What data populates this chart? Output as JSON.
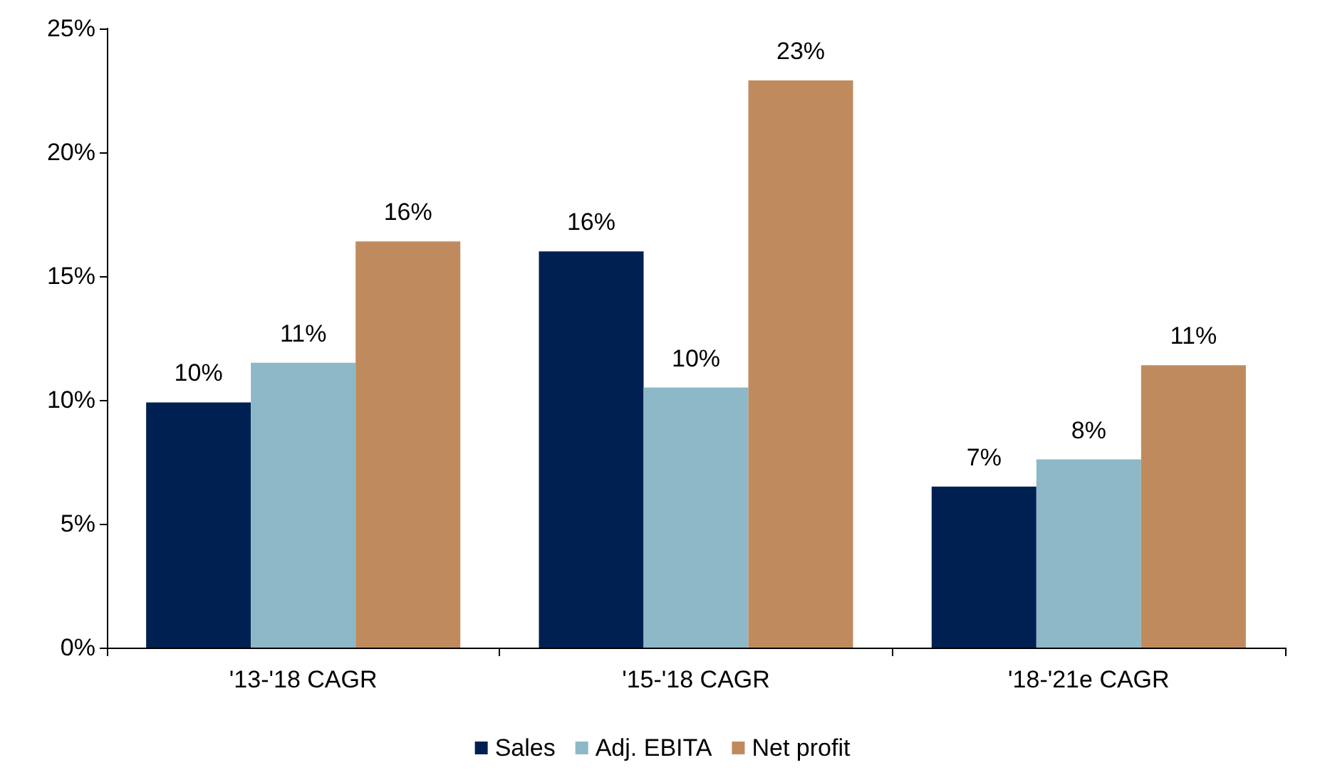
{
  "chart_data": {
    "type": "bar",
    "categories": [
      "'13-'18 CAGR",
      "'15-'18 CAGR",
      "'18-'21e CAGR"
    ],
    "series": [
      {
        "name": "Sales",
        "color": "#002052",
        "values": [
          9.9,
          16.0,
          6.5
        ],
        "value_labels": [
          "10%",
          "16%",
          "7%"
        ]
      },
      {
        "name": "Adj. EBITA",
        "color": "#8db8c7",
        "values": [
          11.5,
          10.5,
          7.6
        ],
        "value_labels": [
          "11%",
          "10%",
          "8%"
        ]
      },
      {
        "name": "Net profit",
        "color": "#bf8b5e",
        "values": [
          16.4,
          22.9,
          11.4
        ],
        "value_labels": [
          "16%",
          "23%",
          "11%"
        ]
      }
    ],
    "ylim": [
      0,
      25
    ],
    "yticks": [
      {
        "value": 0,
        "label": "0%"
      },
      {
        "value": 5,
        "label": "5%"
      },
      {
        "value": 10,
        "label": "10%"
      },
      {
        "value": 15,
        "label": "15%"
      },
      {
        "value": 20,
        "label": "20%"
      },
      {
        "value": 25,
        "label": "25%"
      }
    ],
    "grid": false,
    "legend": "bottom"
  }
}
